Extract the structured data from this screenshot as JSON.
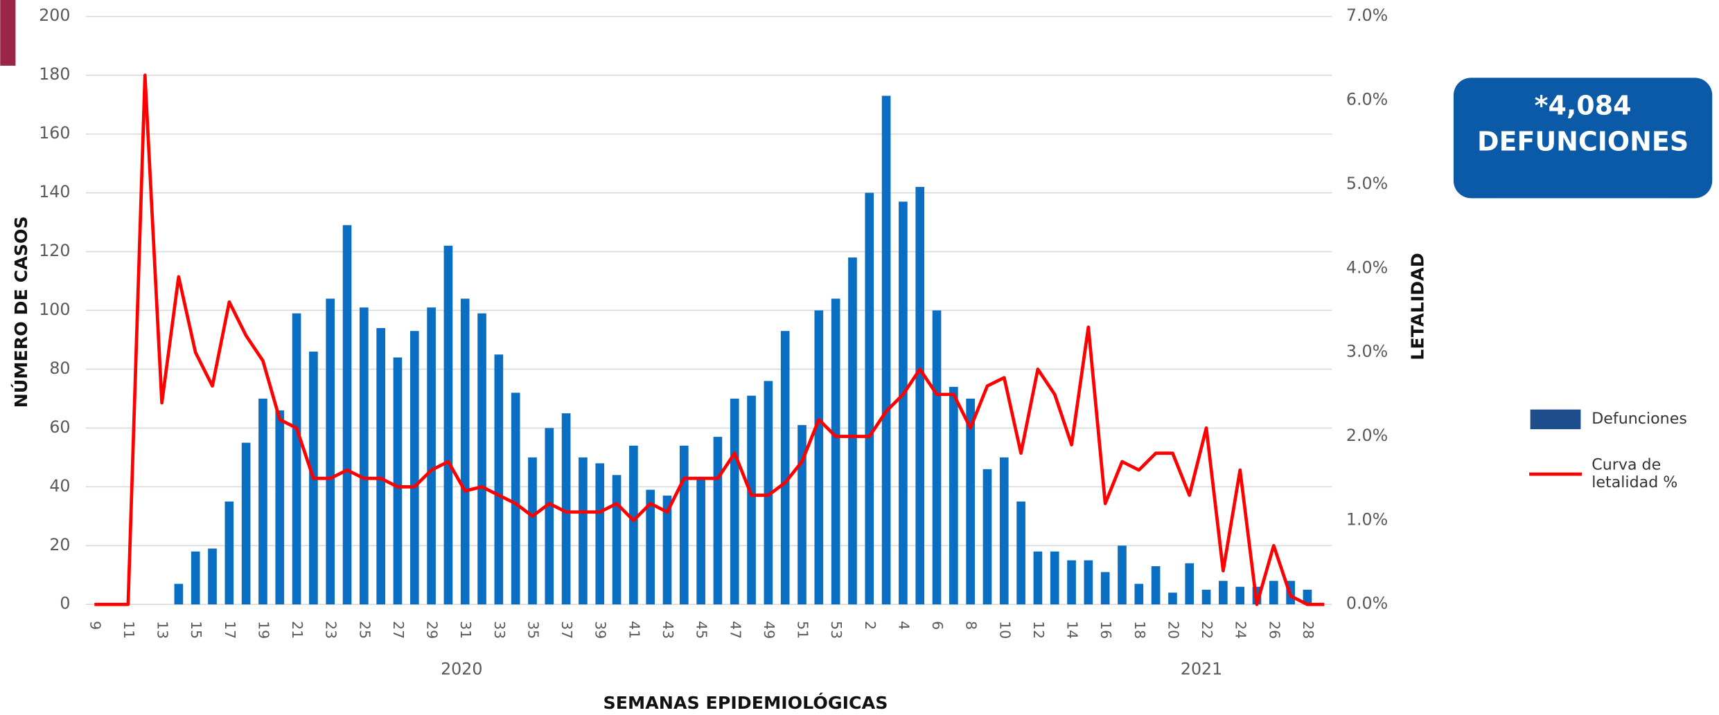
{
  "chart_data": {
    "type": "bar_line",
    "categories": [
      "9",
      null,
      "11",
      null,
      "13",
      null,
      "15",
      null,
      "17",
      null,
      "19",
      null,
      "21",
      null,
      "23",
      null,
      "25",
      null,
      "27",
      null,
      "29",
      null,
      "31",
      null,
      "33",
      null,
      "35",
      null,
      "37",
      null,
      "39",
      null,
      "41",
      null,
      "43",
      null,
      "45",
      null,
      "47",
      null,
      "49",
      null,
      "51",
      null,
      "53",
      null,
      "2",
      null,
      "4",
      null,
      "6",
      null,
      "8",
      null,
      "10",
      null,
      "12",
      null,
      "14",
      null,
      "16",
      null,
      "18",
      null,
      "20",
      null,
      "22",
      null,
      "24",
      null,
      "26",
      null,
      "28",
      null
    ],
    "x_groups": [
      "2020",
      "2021"
    ],
    "xlabel": "SEMANAS EPIDEMIOLÓGICAS",
    "ylabel": "NÚMERO DE CASOS",
    "y2label": "LETALIDAD",
    "series": [
      {
        "name": "Defunciones",
        "color": "#0a6fc2",
        "values": [
          0,
          0,
          0,
          0,
          0,
          7,
          18,
          19,
          35,
          55,
          70,
          66,
          99,
          86,
          104,
          129,
          101,
          94,
          84,
          93,
          101,
          122,
          104,
          99,
          85,
          72,
          50,
          60,
          65,
          50,
          48,
          44,
          54,
          39,
          37,
          54,
          43,
          57,
          70,
          71,
          76,
          93,
          61,
          100,
          104,
          118,
          140,
          173,
          137,
          142,
          100,
          74,
          70,
          46,
          50,
          35,
          18,
          18,
          15,
          15,
          11,
          20,
          7,
          13,
          4,
          14,
          5,
          8,
          6,
          6,
          8,
          8,
          5,
          null
        ]
      },
      {
        "name": "Curva de letalidad %",
        "color": "#ff0000",
        "axis": "y2",
        "values": [
          0,
          0,
          0,
          6.3,
          2.4,
          3.9,
          3.0,
          2.6,
          3.6,
          3.2,
          2.9,
          2.2,
          2.1,
          1.5,
          1.5,
          1.6,
          1.5,
          1.5,
          1.4,
          1.4,
          1.6,
          1.7,
          1.35,
          1.4,
          1.3,
          1.2,
          1.05,
          1.2,
          1.1,
          1.1,
          1.1,
          1.2,
          1.0,
          1.2,
          1.1,
          1.5,
          1.5,
          1.5,
          1.8,
          1.3,
          1.3,
          1.45,
          1.7,
          2.2,
          2.0,
          2.0,
          2.0,
          2.3,
          2.5,
          2.8,
          2.5,
          2.5,
          2.1,
          2.6,
          2.7,
          1.8,
          2.8,
          2.5,
          1.9,
          3.3,
          1.2,
          1.7,
          1.6,
          1.8,
          1.8,
          1.3,
          2.1,
          0.4,
          1.6,
          0.0,
          0.7,
          0.1,
          0,
          0
        ]
      }
    ],
    "ylim": [
      0,
      200
    ],
    "yticks": [
      0,
      20,
      40,
      60,
      80,
      100,
      120,
      140,
      160,
      180,
      200
    ],
    "y2lim": [
      0,
      7
    ],
    "y2ticks": [
      {
        "value": 0,
        "label": "0.0%"
      },
      {
        "value": 1,
        "label": "1.0%"
      },
      {
        "value": 2,
        "label": "2.0%"
      },
      {
        "value": 3,
        "label": "3.0%"
      },
      {
        "value": 4,
        "label": "4.0%"
      },
      {
        "value": 5,
        "label": "5.0%"
      },
      {
        "value": 6,
        "label": "6.0%"
      },
      {
        "value": 7,
        "label": "7.0%"
      }
    ],
    "grid": true,
    "legend": "right",
    "badge": {
      "value": "*4,084",
      "label": "DEFUNCIONES"
    }
  }
}
